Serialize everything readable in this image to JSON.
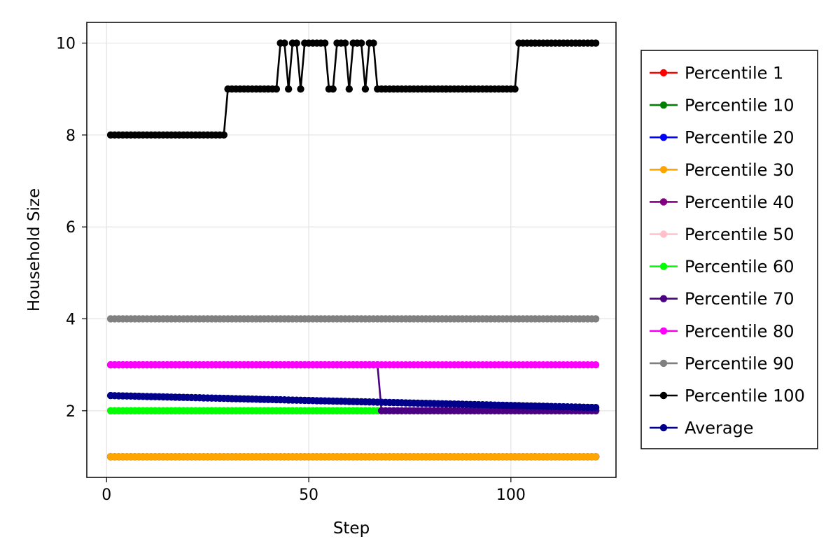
{
  "chart_data": {
    "type": "line",
    "xlabel": "Step",
    "ylabel": "Household Size",
    "xlim": [
      -4.9,
      126
    ],
    "ylim": [
      0.55,
      10.45
    ],
    "x_ticks": [
      0,
      50,
      100
    ],
    "y_ticks": [
      2,
      4,
      6,
      8,
      10
    ],
    "grid": true,
    "legend_position": "right",
    "x_range": [
      1,
      121
    ],
    "series": [
      {
        "name": "Percentile 1",
        "color": "#ff0000",
        "segments": [
          {
            "from": 1,
            "to": 121,
            "value": 1
          }
        ]
      },
      {
        "name": "Percentile 10",
        "color": "#008000",
        "segments": [
          {
            "from": 1,
            "to": 121,
            "value": 1
          }
        ]
      },
      {
        "name": "Percentile 20",
        "color": "#0000ff",
        "segments": [
          {
            "from": 1,
            "to": 121,
            "value": 1
          }
        ]
      },
      {
        "name": "Percentile 30",
        "color": "#ffa500",
        "segments": [
          {
            "from": 1,
            "to": 121,
            "value": 1
          }
        ]
      },
      {
        "name": "Percentile 40",
        "color": "#800080",
        "segments": [
          {
            "from": 1,
            "to": 67,
            "value": 2
          },
          {
            "from": 68,
            "to": 121,
            "value": 2
          }
        ]
      },
      {
        "name": "Percentile 50",
        "color": "#ffc0cb",
        "segments": [
          {
            "from": 1,
            "to": 121,
            "value": 2
          }
        ]
      },
      {
        "name": "Percentile 60",
        "color": "#00ff00",
        "segments": [
          {
            "from": 1,
            "to": 67,
            "value": 2
          }
        ]
      },
      {
        "name": "Percentile 70",
        "color": "#4b0082",
        "segments": [
          {
            "from": 1,
            "to": 67,
            "value": 3
          },
          {
            "from": 68,
            "to": 121,
            "value": 2
          }
        ]
      },
      {
        "name": "Percentile 80",
        "color": "#ff00ff",
        "segments": [
          {
            "from": 1,
            "to": 121,
            "value": 3
          }
        ]
      },
      {
        "name": "Percentile 90",
        "color": "#808080",
        "segments": [
          {
            "from": 1,
            "to": 121,
            "value": 4
          }
        ]
      },
      {
        "name": "Percentile 100",
        "color": "#000000",
        "segments": [
          {
            "from": 1,
            "to": 29,
            "value": 8
          },
          {
            "from": 30,
            "to": 42,
            "value": 9
          },
          {
            "from": 43,
            "to": 44,
            "value": 10
          },
          {
            "from": 45,
            "to": 45,
            "value": 9
          },
          {
            "from": 46,
            "to": 47,
            "value": 10
          },
          {
            "from": 48,
            "to": 48,
            "value": 9
          },
          {
            "from": 49,
            "to": 54,
            "value": 10
          },
          {
            "from": 55,
            "to": 56,
            "value": 9
          },
          {
            "from": 57,
            "to": 59,
            "value": 10
          },
          {
            "from": 60,
            "to": 60,
            "value": 9
          },
          {
            "from": 61,
            "to": 63,
            "value": 10
          },
          {
            "from": 64,
            "to": 64,
            "value": 9
          },
          {
            "from": 65,
            "to": 66,
            "value": 10
          },
          {
            "from": 67,
            "to": 101,
            "value": 9
          },
          {
            "from": 102,
            "to": 121,
            "value": 10
          }
        ]
      },
      {
        "name": "Average",
        "color": "#00008b",
        "linear": {
          "from": 1,
          "to": 121,
          "start": 2.33,
          "end": 2.07
        }
      }
    ]
  }
}
